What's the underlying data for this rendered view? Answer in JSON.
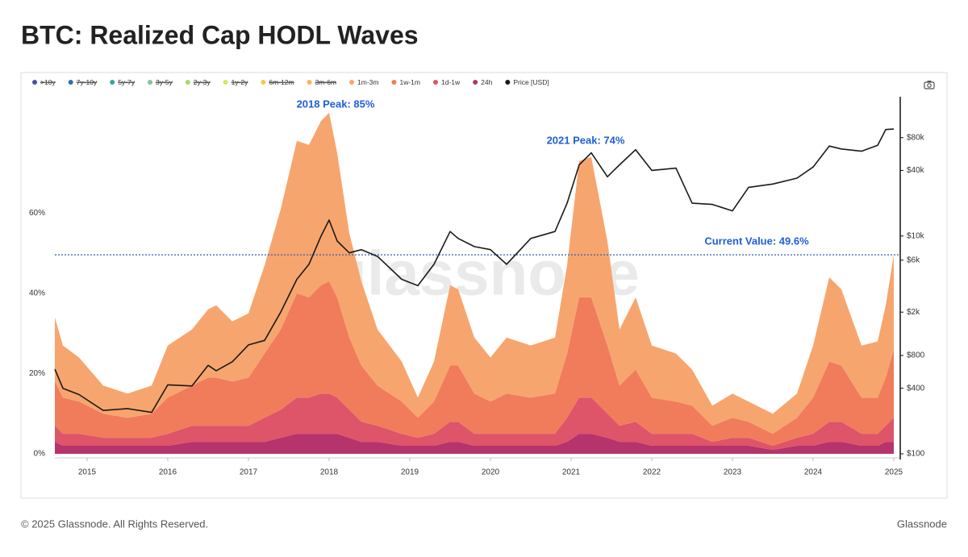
{
  "title": "BTC: Realized Cap HODL Waves",
  "footer": {
    "copyright": "© 2025 Glassnode. All Rights Reserved.",
    "brand": "Glassnode"
  },
  "chart_data": {
    "type": "stacked_area",
    "watermark": "glassnode",
    "legend_hidden": [
      {
        "name": ">10y",
        "color": "#4b4fa6"
      },
      {
        "name": "7y-10y",
        "color": "#2e6fa8"
      },
      {
        "name": "5y-7y",
        "color": "#3aa39a"
      },
      {
        "name": "3y-5y",
        "color": "#7ec69a"
      },
      {
        "name": "2y-3y",
        "color": "#a8d86e"
      },
      {
        "name": "1y-2y",
        "color": "#d6e562"
      },
      {
        "name": "6m-12m",
        "color": "#f5c842"
      },
      {
        "name": "3m-6m",
        "color": "#f9b35b"
      }
    ],
    "x": [
      2014.6,
      2014.7,
      2014.9,
      2015.2,
      2015.5,
      2015.8,
      2016.0,
      2016.3,
      2016.5,
      2016.6,
      2016.8,
      2017.0,
      2017.2,
      2017.4,
      2017.6,
      2017.75,
      2017.9,
      2018.0,
      2018.1,
      2018.25,
      2018.4,
      2018.6,
      2018.9,
      2019.1,
      2019.3,
      2019.5,
      2019.6,
      2019.8,
      2020.0,
      2020.2,
      2020.5,
      2020.8,
      2020.95,
      2021.1,
      2021.25,
      2021.45,
      2021.6,
      2021.8,
      2022.0,
      2022.3,
      2022.5,
      2022.75,
      2023.0,
      2023.2,
      2023.5,
      2023.8,
      2024.0,
      2024.2,
      2024.35,
      2024.6,
      2024.8,
      2024.9,
      2025.0
    ],
    "series": [
      {
        "name": "1m-3m",
        "color": "#f7a56e",
        "values": [
          16,
          13,
          11,
          7,
          6,
          7,
          13,
          14,
          17,
          18,
          15,
          16,
          22,
          30,
          38,
          38,
          41,
          42,
          36,
          26,
          21,
          14,
          10,
          5,
          10,
          20,
          19,
          14,
          11,
          14,
          13,
          14,
          22,
          34,
          35,
          26,
          14,
          18,
          13,
          12,
          9,
          5,
          6,
          5,
          5,
          6,
          13,
          21,
          19,
          13,
          14,
          18,
          23.6
        ]
      },
      {
        "name": "1w-1m",
        "color": "#f07c5c",
        "values": [
          11,
          9,
          8,
          6,
          5,
          6,
          9,
          10,
          12,
          12,
          11,
          12,
          16,
          20,
          26,
          25,
          27,
          28,
          25,
          18,
          14,
          10,
          8,
          5,
          8,
          14,
          14,
          10,
          8,
          10,
          9,
          10,
          16,
          25,
          25,
          17,
          10,
          13,
          9,
          8,
          7,
          4,
          5,
          4,
          3,
          5,
          9,
          15,
          14,
          9,
          9,
          12,
          17
        ]
      },
      {
        "name": "1d-1w",
        "color": "#de5468",
        "values": [
          4,
          3,
          3,
          2,
          2,
          2,
          3,
          4,
          4,
          4,
          4,
          4,
          6,
          7,
          9,
          9,
          10,
          10,
          9,
          7,
          5,
          4,
          3,
          2,
          3,
          5,
          5,
          3,
          3,
          3,
          3,
          3,
          6,
          9,
          9,
          6,
          4,
          5,
          3,
          3,
          3,
          1,
          2,
          2,
          1,
          2,
          3,
          5,
          5,
          3,
          3,
          4,
          6
        ]
      },
      {
        "name": "24h",
        "color": "#b6336b",
        "values": [
          3,
          2,
          2,
          2,
          2,
          2,
          2,
          3,
          3,
          3,
          3,
          3,
          3,
          4,
          5,
          5,
          5,
          5,
          5,
          4,
          3,
          3,
          2,
          2,
          2,
          3,
          3,
          2,
          2,
          2,
          2,
          2,
          3,
          5,
          5,
          4,
          3,
          3,
          2,
          2,
          2,
          2,
          2,
          2,
          1,
          2,
          2,
          3,
          3,
          2,
          2,
          3,
          3
        ]
      },
      {
        "name": "Price [USD]",
        "color": "#1a1a1a",
        "axis": "y2",
        "values": [
          600,
          400,
          350,
          250,
          260,
          240,
          430,
          420,
          650,
          580,
          700,
          1000,
          1100,
          2000,
          4000,
          5500,
          10000,
          14000,
          9000,
          7000,
          7500,
          6500,
          4000,
          3500,
          5500,
          11000,
          9500,
          8000,
          7500,
          5500,
          9500,
          11000,
          20000,
          45000,
          58000,
          35000,
          45000,
          62000,
          40000,
          42000,
          20000,
          19500,
          17000,
          28000,
          30000,
          34000,
          43000,
          67000,
          63000,
          60000,
          68000,
          95000,
          96000
        ]
      }
    ],
    "xlim": [
      2014.6,
      2025.07
    ],
    "xticks": [
      2015,
      2016,
      2017,
      2018,
      2019,
      2020,
      2021,
      2022,
      2023,
      2024,
      2025
    ],
    "ylim": [
      0,
      89
    ],
    "yticks": [
      {
        "value": 0,
        "label": "0%"
      },
      {
        "value": 20,
        "label": "20%"
      },
      {
        "value": 40,
        "label": "40%"
      },
      {
        "value": 60,
        "label": "60%"
      }
    ],
    "y2lim": [
      100,
      190000
    ],
    "y2scale": "log",
    "y2ticks": [
      {
        "value": 100,
        "label": "$100"
      },
      {
        "value": 400,
        "label": "$400"
      },
      {
        "value": 800,
        "label": "$800"
      },
      {
        "value": 2000,
        "label": "$2k"
      },
      {
        "value": 6000,
        "label": "$6k"
      },
      {
        "value": 10000,
        "label": "$10k"
      },
      {
        "value": 40000,
        "label": "$40k"
      },
      {
        "value": 80000,
        "label": "$80k"
      }
    ],
    "annotations": [
      "2018 Peak: 85%",
      "2021 Peak: 74%"
    ],
    "hline": {
      "value": 49.6,
      "label": "Current Value: 49.6%",
      "color": "#2f5fae"
    },
    "annotation_color": "#1f5fd6"
  }
}
